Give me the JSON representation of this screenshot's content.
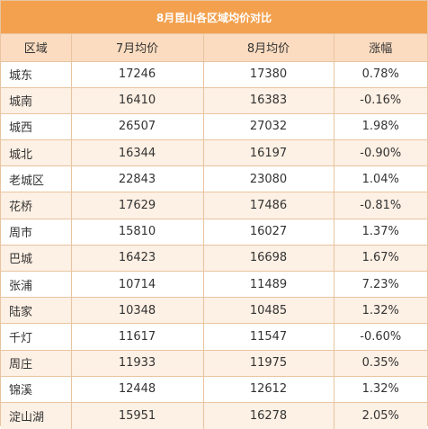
{
  "title": "8月昆山各区域均价对比",
  "headers": {
    "region": "区域",
    "july": "7月均价",
    "august": "8月均价",
    "change": "涨幅"
  },
  "rows": [
    {
      "region": "城东",
      "july": "17246",
      "august": "17380",
      "change": "0.78%"
    },
    {
      "region": "城南",
      "july": "16410",
      "august": "16383",
      "change": "-0.16%"
    },
    {
      "region": "城西",
      "july": "26507",
      "august": "27032",
      "change": "1.98%"
    },
    {
      "region": "城北",
      "july": "16344",
      "august": "16197",
      "change": "-0.90%"
    },
    {
      "region": "老城区",
      "july": "22843",
      "august": "23080",
      "change": "1.04%"
    },
    {
      "region": "花桥",
      "july": "17629",
      "august": "17486",
      "change": "-0.81%"
    },
    {
      "region": "周市",
      "july": "15810",
      "august": "16027",
      "change": "1.37%"
    },
    {
      "region": "巴城",
      "july": "16423",
      "august": "16698",
      "change": "1.67%"
    },
    {
      "region": "张浦",
      "july": "10714",
      "august": "11489",
      "change": "7.23%"
    },
    {
      "region": "陆家",
      "july": "10348",
      "august": "10485",
      "change": "1.32%"
    },
    {
      "region": "千灯",
      "july": "11617",
      "august": "11547",
      "change": "-0.60%"
    },
    {
      "region": "周庄",
      "july": "11933",
      "august": "11975",
      "change": "0.35%"
    },
    {
      "region": "锦溪",
      "july": "12448",
      "august": "12612",
      "change": "1.32%"
    },
    {
      "region": "淀山湖",
      "july": "15951",
      "august": "16278",
      "change": "2.05%"
    }
  ],
  "colors": {
    "title_bg": "#f3a14f",
    "header_bg": "#fbdcc0",
    "stripe_bg": "#fdf0e4",
    "border": "#e8c4a0"
  }
}
